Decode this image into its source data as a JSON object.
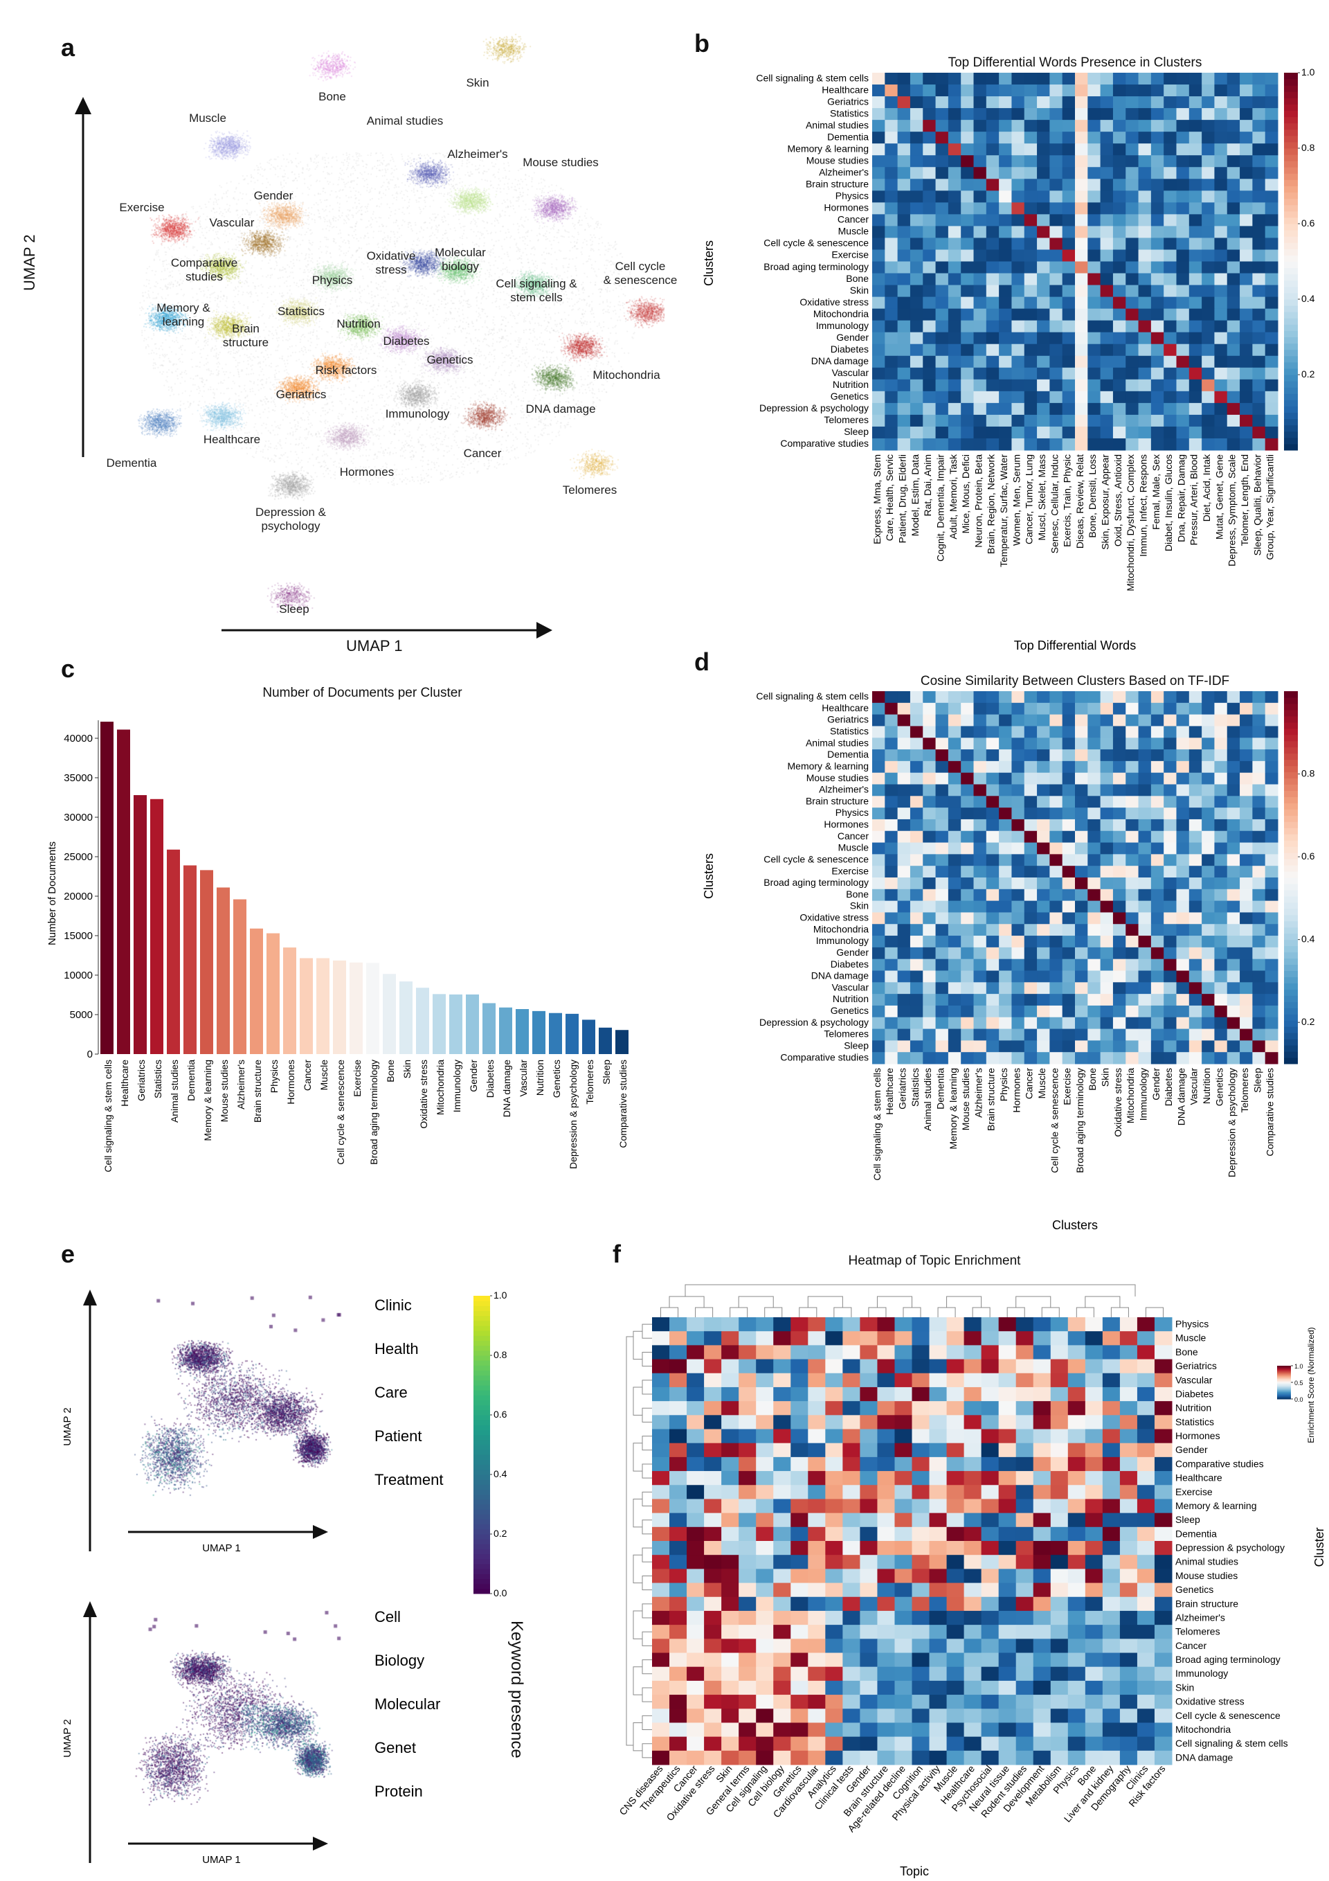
{
  "panels": {
    "a": "a",
    "b": "b",
    "c": "c",
    "d": "d",
    "e": "e",
    "f": "f"
  },
  "umap": {
    "xlabel": "UMAP 1",
    "ylabel": "UMAP 2",
    "clusters": [
      "Bone",
      "Skin",
      "Muscle",
      "Animal studies",
      "Alzheimer's",
      "Mouse studies",
      "Exercise",
      "Gender",
      "Vascular",
      "Comparative studies",
      "Oxidative stress",
      "Molecular biology",
      "Physics",
      "Cell signaling & stem cells",
      "Cell cycle & senescence",
      "Memory & learning",
      "Brain structure",
      "Statistics",
      "Nutrition",
      "Diabetes",
      "Risk factors",
      "Genetics",
      "Mitochondria",
      "Geriatrics",
      "DNA damage",
      "Immunology",
      "Healthcare",
      "Dementia",
      "Cancer",
      "Hormones",
      "Telomeres",
      "Depression & psychology",
      "Sleep"
    ]
  },
  "chart_data": [
    {
      "type": "heatmap",
      "title": "Top Differential Words Presence in Clusters",
      "xlabel": "Top Differential Words",
      "ylabel": "Clusters",
      "rows": [
        "Cell signaling & stem cells",
        "Healthcare",
        "Geriatrics",
        "Statistics",
        "Animal studies",
        "Dementia",
        "Memory & learning",
        "Mouse studies",
        "Alzheimer's",
        "Brain structure",
        "Physics",
        "Hormones",
        "Cancer",
        "Muscle",
        "Cell cycle & senescence",
        "Exercise",
        "Broad aging terminology",
        "Bone",
        "Skin",
        "Oxidative stress",
        "Mitochondria",
        "Immunology",
        "Gender",
        "Diabetes",
        "DNA damage",
        "Vascular",
        "Nutrition",
        "Genetics",
        "Depression & psychology",
        "Telomeres",
        "Sleep",
        "Comparative studies"
      ],
      "columns": [
        "Express, Mma, Stem",
        "Care, Health, Servic",
        "Patient, Drug, Elderli",
        "Model, Estim, Data",
        "Rat, Dai, Anim",
        "Cognit, Dementia, Impair",
        "Adult, Memori, Task",
        "Mice, Mous, Defici",
        "Neuron, Protein, Beta",
        "Brain, Region, Network",
        "Temperatur, Surfac, Water",
        "Women, Men, Serum",
        "Cancer, Tumor, Lung",
        "Muscl, Skelet, Mass",
        "Senesc, Cellular, Induc",
        "Exercis, Train, Physic",
        "Diseas, Review, Relat",
        "Bone, Densiti, Loss",
        "Skin, Exposur, Appear",
        "Oxid, Stress, Antioxid",
        "Mitochondri, Dysfunct, Complex",
        "Immun, Infect, Respons",
        "Femal, Male, Sex",
        "Diabet, Insulin, Glucos",
        "Dna, Repair, Damag",
        "Pressur, Arteri, Blood",
        "Diet, Acid, Intak",
        "Mutat, Genet, Gene",
        "Depress, Symptom, Scale",
        "Telomer, Length, End",
        "Sleep, Qualiti, Behavior",
        "Group, Year, Significantli"
      ],
      "diagonal": [
        0.55,
        0.7,
        0.85,
        0.38,
        0.95,
        0.95,
        0.85,
        1.0,
        1.0,
        0.95,
        0.5,
        0.85,
        0.95,
        0.95,
        0.95,
        0.9,
        0.75,
        0.95,
        0.95,
        0.95,
        0.95,
        0.95,
        0.95,
        0.9,
        0.95,
        0.9,
        0.75,
        0.9,
        0.95,
        0.95,
        0.95,
        0.95
      ],
      "colorbar_ticks": [
        "0.2",
        "0.4",
        "0.6",
        "0.8",
        "1.0"
      ],
      "range": [
        0.0,
        1.0
      ],
      "colormap": "RdBu_r"
    },
    {
      "type": "bar",
      "title": "Number of Documents per Cluster",
      "xlabel": "",
      "ylabel": "Number of Documents",
      "categories": [
        "Cell signaling & stem cells",
        "Healthcare",
        "Geriatrics",
        "Statistics",
        "Animal studies",
        "Dementia",
        "Memory & learning",
        "Mouse studies",
        "Alzheimer's",
        "Brain structure",
        "Physics",
        "Hormones",
        "Cancer",
        "Muscle",
        "Cell cycle & senescence",
        "Exercise",
        "Broad aging terminology",
        "Bone",
        "Skin",
        "Oxidative stress",
        "Mitochondria",
        "Immunology",
        "Gender",
        "Diabetes",
        "DNA damage",
        "Vascular",
        "Nutrition",
        "Genetics",
        "Depression & psychology",
        "Telomeres",
        "Sleep",
        "Comparative studies"
      ],
      "values": [
        42100,
        41100,
        32800,
        32300,
        25900,
        23900,
        23300,
        21100,
        19600,
        15900,
        15300,
        13500,
        12150,
        12150,
        11850,
        11600,
        11550,
        10150,
        9200,
        8400,
        7600,
        7550,
        7550,
        6450,
        5900,
        5700,
        5450,
        5200,
        5100,
        4350,
        3350,
        3050
      ],
      "yticks": [
        "0",
        "5000",
        "10000",
        "15000",
        "20000",
        "25000",
        "30000",
        "35000",
        "40000"
      ],
      "ylim": [
        0,
        43000
      ],
      "colormap": "RdBu_r"
    },
    {
      "type": "heatmap",
      "title": "Cosine Similarity Between Clusters Based on TF-IDF",
      "xlabel": "Clusters",
      "ylabel": "Clusters",
      "rows": [
        "Cell signaling & stem cells",
        "Healthcare",
        "Geriatrics",
        "Statistics",
        "Animal studies",
        "Dementia",
        "Memory & learning",
        "Mouse studies",
        "Alzheimer's",
        "Brain structure",
        "Physics",
        "Hormones",
        "Cancer",
        "Muscle",
        "Cell cycle & senescence",
        "Exercise",
        "Broad aging terminology",
        "Bone",
        "Skin",
        "Oxidative stress",
        "Mitochondria",
        "Immunology",
        "Gender",
        "Diabetes",
        "DNA damage",
        "Vascular",
        "Nutrition",
        "Genetics",
        "Depression & psychology",
        "Telomeres",
        "Sleep",
        "Comparative studies"
      ],
      "columns": [
        "Cell signaling & stem cells",
        "Healthcare",
        "Geriatrics",
        "Statistics",
        "Animal studies",
        "Dementia",
        "Memory & learning",
        "Mouse studies",
        "Alzheimer's",
        "Brain structure",
        "Physics",
        "Hormones",
        "Cancer",
        "Muscle",
        "Cell cycle & senescence",
        "Exercise",
        "Broad aging terminology",
        "Bone",
        "Skin",
        "Oxidative stress",
        "Mitochondria",
        "Immunology",
        "Gender",
        "Diabetes",
        "DNA damage",
        "Vascular",
        "Nutrition",
        "Genetics",
        "Depression & psychology",
        "Telomeres",
        "Sleep",
        "Comparative studies"
      ],
      "diagonal_value": 1.0,
      "colorbar_ticks": [
        "0.2",
        "0.4",
        "0.6",
        "0.8"
      ],
      "range": [
        0.1,
        1.0
      ],
      "colormap": "RdBu_r"
    },
    {
      "type": "scatter",
      "xlabel": "UMAP 1",
      "ylabel": "UMAP 2",
      "keyword_sets": [
        [
          "Clinic",
          "Health",
          "Care",
          "Patient",
          "Treatment"
        ],
        [
          "Cell",
          "Biology",
          "Molecular",
          "Genet",
          "Protein"
        ]
      ],
      "colorbar_label": "Keyword presence",
      "colorbar_ticks": [
        "0.0",
        "0.2",
        "0.4",
        "0.6",
        "0.8",
        "1.0"
      ],
      "range": [
        0.0,
        1.0
      ],
      "colormap": "viridis"
    },
    {
      "type": "heatmap",
      "title": "Heatmap of Topic Enrichment",
      "xlabel": "Topic",
      "ylabel": "Cluster",
      "rows": [
        "Physics",
        "Muscle",
        "Bone",
        "Geriatrics",
        "Vascular",
        "Diabetes",
        "Nutrition",
        "Statistics",
        "Hormones",
        "Gender",
        "Comparative studies",
        "Healthcare",
        "Exercise",
        "Memory & learning",
        "Sleep",
        "Dementia",
        "Depression & psychology",
        "Animal studies",
        "Mouse studies",
        "Genetics",
        "Brain structure",
        "Alzheimer's",
        "Telomeres",
        "Cancer",
        "Broad aging terminology",
        "Immunology",
        "Skin",
        "Oxidative stress",
        "Cell cycle & senescence",
        "Mitochondria",
        "Cell signaling & stem cells",
        "DNA damage"
      ],
      "columns": [
        "CNS diseases",
        "Therapeutics",
        "Cancer",
        "Oxidative stress",
        "Skin",
        "General terms",
        "Cell signaling",
        "Cell biology",
        "Genetics",
        "Cardiovascular",
        "Analytics",
        "Clinical tests",
        "Gender",
        "Brain structure",
        "Age-related decline",
        "Cognition",
        "Physical activity",
        "Muscle",
        "Healthcare",
        "Psychosocial",
        "Neural tissue",
        "Rodent studies",
        "Development",
        "Metabolism",
        "Physics",
        "Bone",
        "Liver and kidney",
        "Demography",
        "Clinics",
        "Risk factors"
      ],
      "colorbar_label": "Enrichment Score (Normalized)",
      "colorbar_ticks": [
        "0.0",
        "0.5",
        "1.0"
      ],
      "range": [
        0.0,
        1.0
      ],
      "colormap": "RdBu_r",
      "dendrograms": true
    }
  ]
}
